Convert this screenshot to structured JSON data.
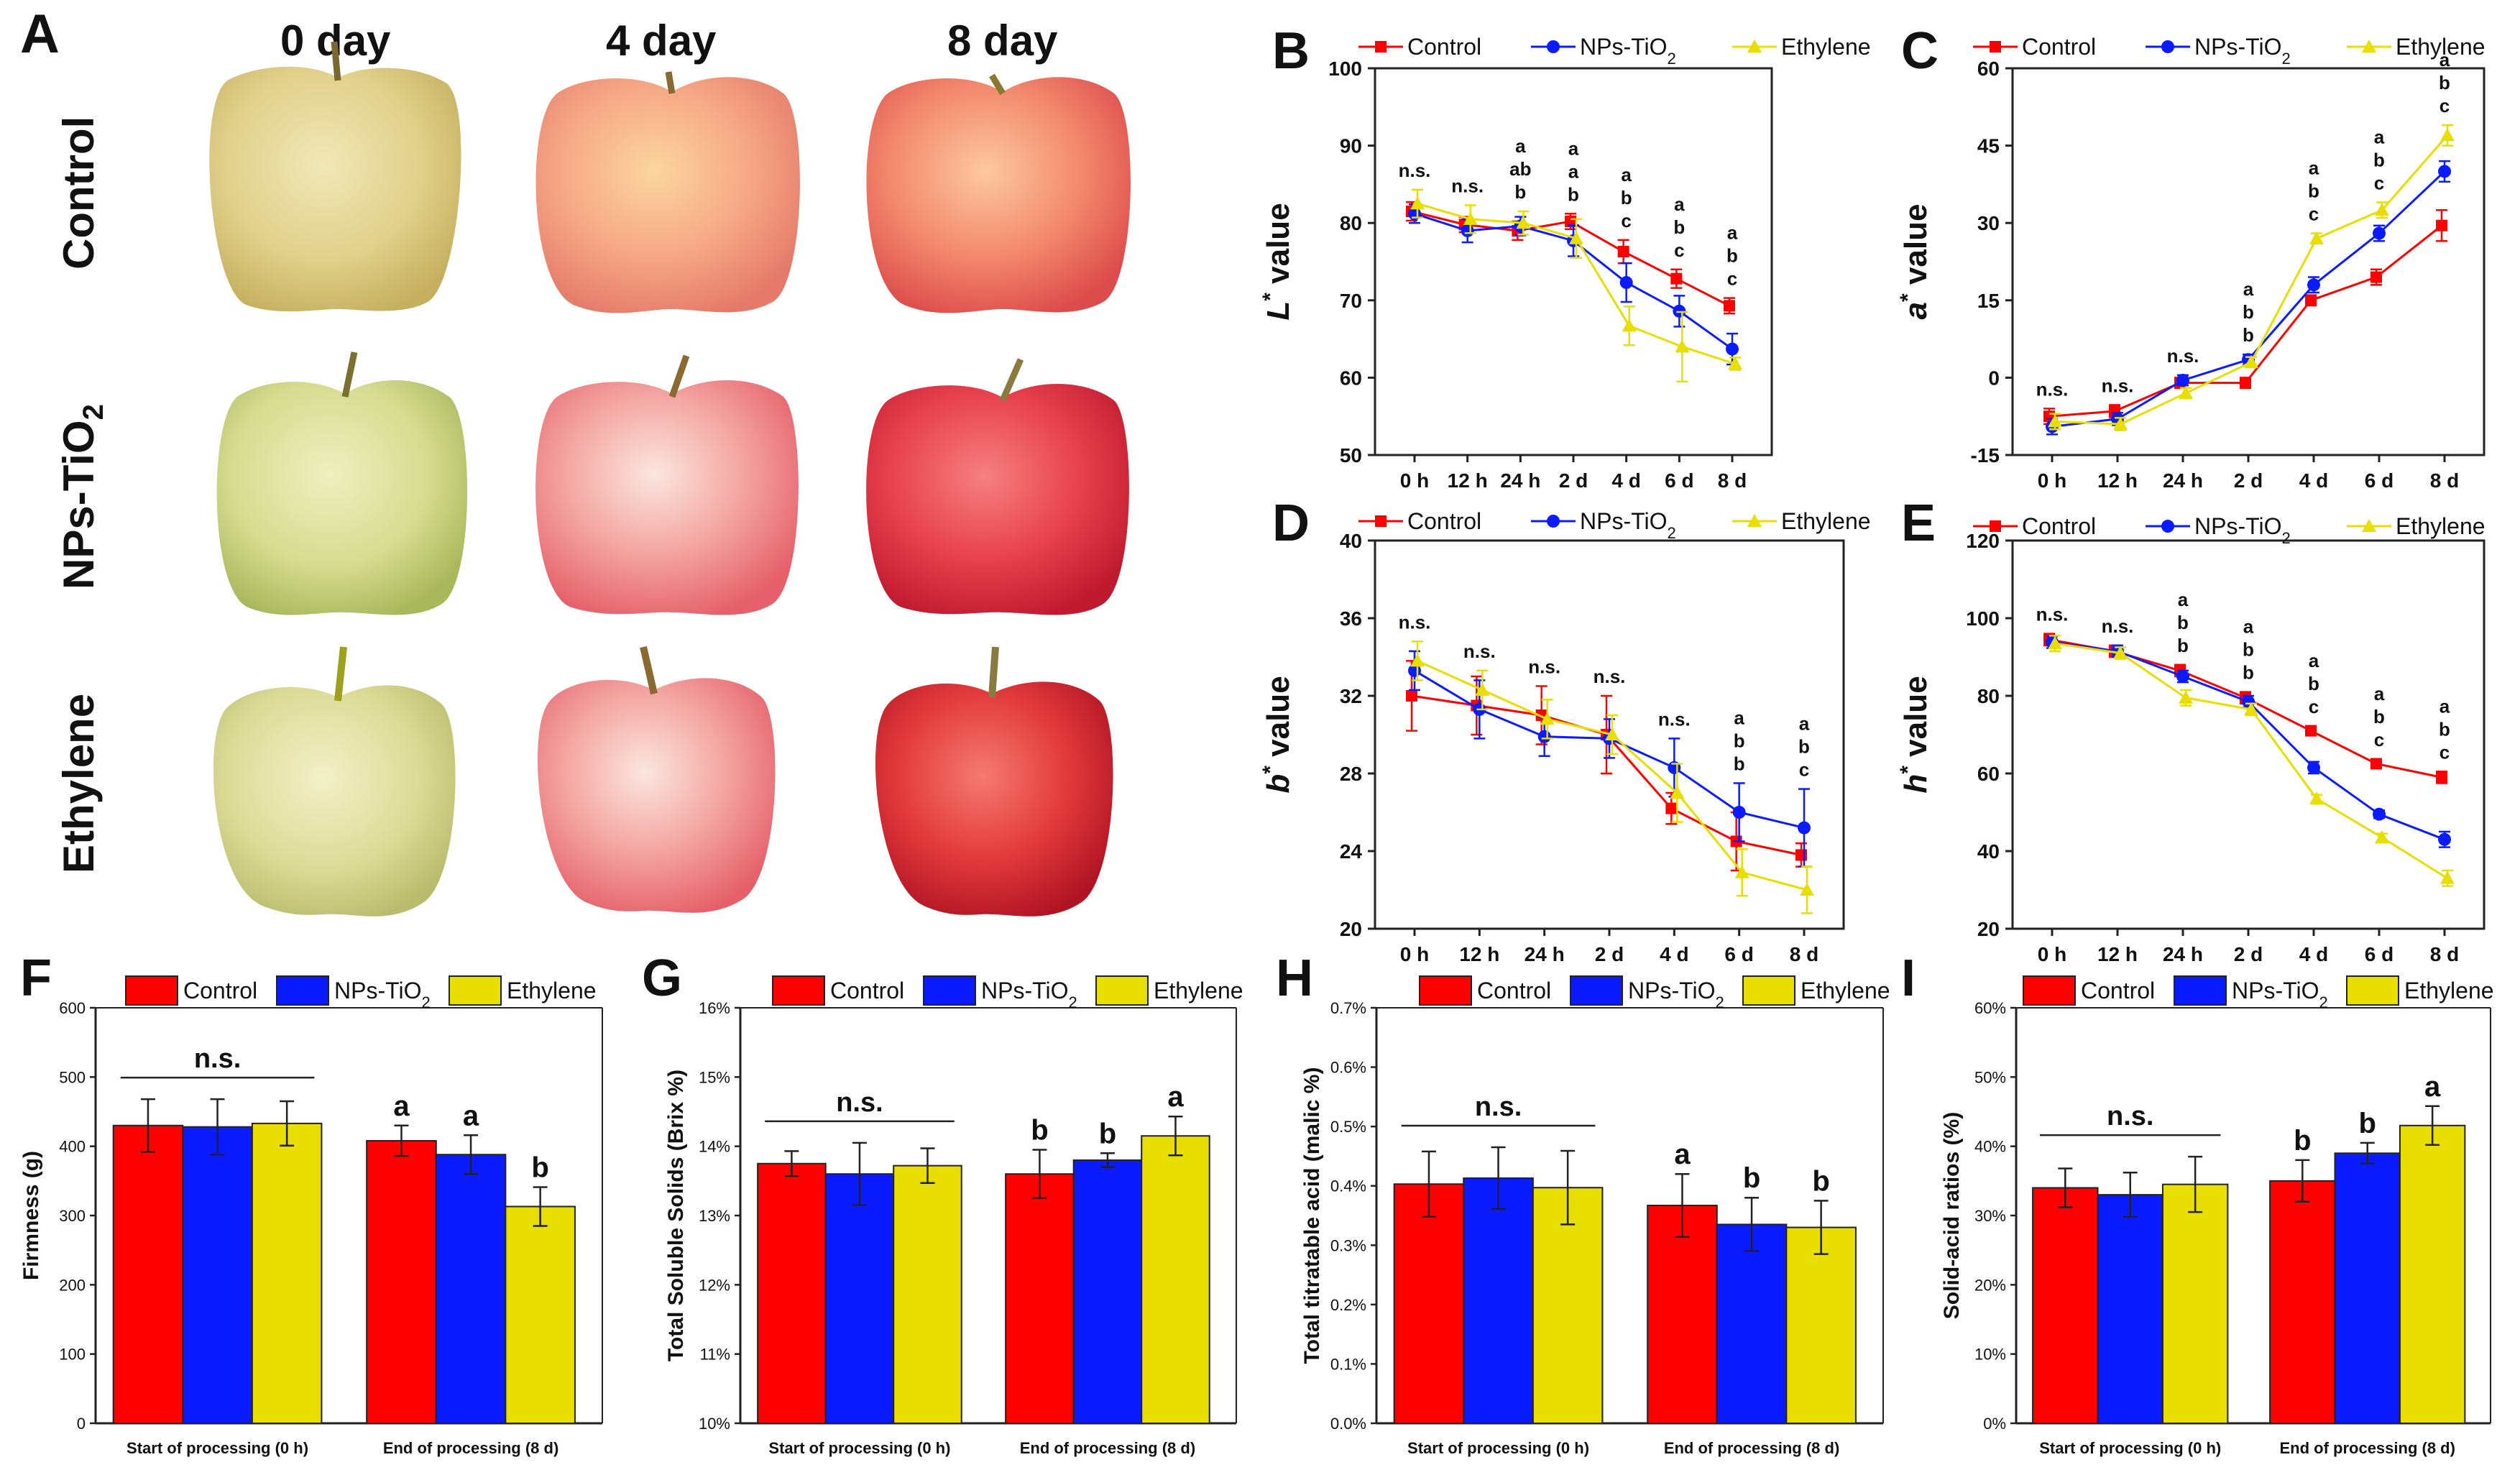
{
  "figure": {
    "panel_letters": [
      "A",
      "B",
      "C",
      "D",
      "E",
      "F",
      "G",
      "H",
      "I"
    ],
    "photo_grid": {
      "columns": [
        "0 day",
        "4 day",
        "8 day"
      ],
      "rows": [
        {
          "label": "Control",
          "sub": ""
        },
        {
          "label": "NPs-TiO",
          "sub": "2"
        },
        {
          "label": "Ethylene",
          "sub": ""
        }
      ]
    }
  },
  "colors": {
    "control": "#ff0000",
    "nps": "#0a1cff",
    "ethylene": "#e8de00",
    "axis": "#222222"
  },
  "legend": {
    "control": "Control",
    "nps": "NPs-TiO",
    "nps_sub": "2",
    "ethylene": "Ethylene"
  },
  "chart_data": [
    {
      "id": "B",
      "type": "line",
      "ylabel": "value",
      "ylabel_var": "L",
      "ylabel_sup": "*",
      "ylim": [
        50,
        100
      ],
      "yticks": [
        50,
        60,
        70,
        80,
        90,
        100
      ],
      "categories": [
        "0 h",
        "12 h",
        "24 h",
        "2 d",
        "4 d",
        "6 d",
        "8 d"
      ],
      "series": [
        {
          "name": "Control",
          "values": [
            81.5,
            79.8,
            79.0,
            80.2,
            76.3,
            72.8,
            69.3
          ],
          "errors": [
            1.2,
            1.0,
            1.2,
            1.0,
            1.5,
            1.2,
            1.0
          ]
        },
        {
          "name": "NPs-TiO2",
          "values": [
            81.2,
            79.0,
            79.6,
            77.7,
            72.3,
            68.6,
            63.7
          ],
          "errors": [
            1.2,
            1.5,
            1.2,
            2.0,
            2.5,
            2.0,
            2.0
          ]
        },
        {
          "name": "Ethylene",
          "values": [
            82.5,
            80.5,
            80.0,
            78.0,
            66.7,
            64.0,
            61.8
          ],
          "errors": [
            1.8,
            1.8,
            1.5,
            2.5,
            2.5,
            4.5,
            0.8
          ]
        }
      ],
      "letters": [
        [
          "n.s."
        ],
        [
          "n.s."
        ],
        [
          "a",
          "ab",
          "b"
        ],
        [
          "a",
          "a",
          "b"
        ],
        [
          "a",
          "b",
          "c"
        ],
        [
          "a",
          "b",
          "c"
        ],
        [
          "a",
          "b",
          "c"
        ]
      ]
    },
    {
      "id": "C",
      "type": "line",
      "ylabel": "value",
      "ylabel_var": "a",
      "ylabel_sup": "*",
      "ylim": [
        -15,
        60
      ],
      "yticks": [
        -15,
        0,
        15,
        30,
        45,
        60
      ],
      "categories": [
        "0 h",
        "12 h",
        "24 h",
        "2 d",
        "4 d",
        "6 d",
        "8 d"
      ],
      "series": [
        {
          "name": "Control",
          "values": [
            -7.5,
            -6.5,
            -1.0,
            -1.0,
            15.0,
            19.5,
            29.5
          ],
          "errors": [
            1.5,
            1.2,
            1.0,
            1.0,
            1.0,
            1.5,
            3.0
          ]
        },
        {
          "name": "NPs-TiO2",
          "values": [
            -9.5,
            -8.0,
            -0.5,
            3.5,
            18.0,
            28.0,
            40.0
          ],
          "errors": [
            1.5,
            1.2,
            1.0,
            1.0,
            1.5,
            1.5,
            2.0
          ]
        },
        {
          "name": "Ethylene",
          "values": [
            -8.5,
            -9.0,
            -3.0,
            3.0,
            27.0,
            32.5,
            47.0
          ],
          "errors": [
            1.5,
            1.2,
            1.0,
            1.0,
            1.0,
            1.5,
            2.0
          ]
        }
      ],
      "letters": [
        [
          "n.s."
        ],
        [
          "n.s."
        ],
        [
          "n.s."
        ],
        [
          "a",
          "b",
          "b"
        ],
        [
          "a",
          "b",
          "c"
        ],
        [
          "a",
          "b",
          "c"
        ],
        [
          "a",
          "b",
          "c"
        ]
      ]
    },
    {
      "id": "D",
      "type": "line",
      "ylabel": "value",
      "ylabel_var": "b",
      "ylabel_sup": "*",
      "ylim": [
        20,
        40
      ],
      "yticks": [
        20,
        24,
        28,
        32,
        36,
        40
      ],
      "categories": [
        "0 h",
        "12 h",
        "24 h",
        "2 d",
        "4 d",
        "6 d",
        "8 d"
      ],
      "series": [
        {
          "name": "Control",
          "values": [
            32.0,
            31.5,
            31.0,
            30.0,
            26.2,
            24.5,
            23.8
          ],
          "errors": [
            1.8,
            1.5,
            1.5,
            2.0,
            0.8,
            1.5,
            0.6
          ]
        },
        {
          "name": "NPs-TiO2",
          "values": [
            33.3,
            31.3,
            29.9,
            29.8,
            28.3,
            26.0,
            25.2
          ],
          "errors": [
            1.0,
            1.5,
            1.0,
            1.0,
            1.5,
            1.5,
            2.0
          ]
        },
        {
          "name": "Ethylene",
          "values": [
            33.8,
            32.3,
            30.8,
            30.0,
            27.0,
            22.9,
            22.0
          ],
          "errors": [
            1.0,
            1.0,
            1.0,
            1.0,
            1.5,
            1.2,
            1.2
          ]
        }
      ],
      "letters": [
        [
          "n.s."
        ],
        [
          "n.s."
        ],
        [
          "n.s."
        ],
        [
          "n.s."
        ],
        [
          "n.s."
        ],
        [
          "a",
          "b",
          "b"
        ],
        [
          "a",
          "b",
          "c"
        ]
      ]
    },
    {
      "id": "E",
      "type": "line",
      "ylabel": "value",
      "ylabel_var": "h",
      "ylabel_sup": "*",
      "ylim": [
        20,
        120
      ],
      "yticks": [
        20,
        40,
        60,
        80,
        100,
        120
      ],
      "categories": [
        "0 h",
        "12 h",
        "24 h",
        "2 d",
        "4 d",
        "6 d",
        "8 d"
      ],
      "series": [
        {
          "name": "Control",
          "values": [
            94.5,
            91.5,
            86.5,
            79.5,
            71.0,
            62.5,
            59.0
          ],
          "errors": [
            1.5,
            1.5,
            1.5,
            1.5,
            1.2,
            1.2,
            1.5
          ]
        },
        {
          "name": "NPs-TiO2",
          "values": [
            93.8,
            91.5,
            85.0,
            78.5,
            61.5,
            49.5,
            43.0
          ],
          "errors": [
            1.5,
            1.5,
            1.5,
            1.5,
            1.5,
            1.0,
            2.0
          ]
        },
        {
          "name": "Ethylene",
          "values": [
            93.5,
            91.0,
            79.5,
            76.5,
            53.5,
            43.5,
            33.0
          ],
          "errors": [
            2.0,
            1.5,
            2.0,
            1.5,
            1.0,
            1.0,
            2.0
          ]
        }
      ],
      "letters": [
        [
          "n.s."
        ],
        [
          "n.s."
        ],
        [
          "a",
          "b",
          "b"
        ],
        [
          "a",
          "b",
          "b"
        ],
        [
          "a",
          "b",
          "c"
        ],
        [
          "a",
          "b",
          "c"
        ],
        [
          "a",
          "b",
          "c"
        ]
      ]
    },
    {
      "id": "F",
      "type": "bar",
      "ylabel": "Firmness (g)",
      "ylim": [
        0,
        600
      ],
      "yticks": [
        0,
        100,
        200,
        300,
        400,
        500,
        600
      ],
      "ytick_labels": [
        "0",
        "100",
        "200",
        "300",
        "400",
        "500",
        "600"
      ],
      "categories": [
        "Start of processing (0 h)",
        "End of processing (8 d)"
      ],
      "series": [
        {
          "name": "Control",
          "values": [
            430,
            408
          ],
          "errors": [
            38,
            22
          ]
        },
        {
          "name": "NPs-TiO2",
          "values": [
            428,
            388
          ],
          "errors": [
            40,
            28
          ]
        },
        {
          "name": "Ethylene",
          "values": [
            433,
            313
          ],
          "errors": [
            32,
            28
          ]
        }
      ],
      "group_letters": [
        "n.s.",
        null
      ],
      "bar_letters": [
        [
          null,
          null,
          null
        ],
        [
          "a",
          "a",
          "b"
        ]
      ]
    },
    {
      "id": "G",
      "type": "bar",
      "ylabel": "Total Soluble Solids (Brix %)",
      "ylim": [
        10,
        16
      ],
      "yticks": [
        10,
        11,
        12,
        13,
        14,
        15,
        16
      ],
      "ytick_labels": [
        "10%",
        "11%",
        "12%",
        "13%",
        "14%",
        "15%",
        "16%"
      ],
      "categories": [
        "Start of processing (0 h)",
        "End of processing (8 d)"
      ],
      "series": [
        {
          "name": "Control",
          "values": [
            13.75,
            13.6
          ],
          "errors": [
            0.18,
            0.35
          ]
        },
        {
          "name": "NPs-TiO2",
          "values": [
            13.6,
            13.8
          ],
          "errors": [
            0.45,
            0.1
          ]
        },
        {
          "name": "Ethylene",
          "values": [
            13.72,
            14.15
          ],
          "errors": [
            0.25,
            0.28
          ]
        }
      ],
      "group_letters": [
        "n.s.",
        null
      ],
      "bar_letters": [
        [
          null,
          null,
          null
        ],
        [
          "b",
          "b",
          "a"
        ]
      ]
    },
    {
      "id": "H",
      "type": "bar",
      "ylabel": "Total titratable acid (malic %)",
      "ylim": [
        0,
        0.7
      ],
      "yticks": [
        0,
        0.1,
        0.2,
        0.3,
        0.4,
        0.5,
        0.6,
        0.7
      ],
      "ytick_labels": [
        "0.0%",
        "0.1%",
        "0.2%",
        "0.3%",
        "0.4%",
        "0.5%",
        "0.6%",
        "0.7%"
      ],
      "categories": [
        "Start of processing (0 h)",
        "End of processing (8 d)"
      ],
      "series": [
        {
          "name": "Control",
          "values": [
            0.403,
            0.367
          ],
          "errors": [
            0.055,
            0.053
          ]
        },
        {
          "name": "NPs-TiO2",
          "values": [
            0.413,
            0.335
          ],
          "errors": [
            0.052,
            0.045
          ]
        },
        {
          "name": "Ethylene",
          "values": [
            0.397,
            0.33
          ],
          "errors": [
            0.062,
            0.045
          ]
        }
      ],
      "group_letters": [
        "n.s.",
        null
      ],
      "bar_letters": [
        [
          null,
          null,
          null
        ],
        [
          "a",
          "b",
          "b"
        ]
      ]
    },
    {
      "id": "I",
      "type": "bar",
      "ylabel": "Solid-acid ratios (%)",
      "ylim": [
        0,
        60
      ],
      "yticks": [
        0,
        10,
        20,
        30,
        40,
        50,
        60
      ],
      "ytick_labels": [
        "0%",
        "10%",
        "20%",
        "30%",
        "40%",
        "50%",
        "60%"
      ],
      "categories": [
        "Start of processing (0 h)",
        "End of processing (8 d)"
      ],
      "series": [
        {
          "name": "Control",
          "values": [
            34,
            35
          ],
          "errors": [
            2.8,
            3.0
          ]
        },
        {
          "name": "NPs-TiO2",
          "values": [
            33,
            39
          ],
          "errors": [
            3.2,
            1.5
          ]
        },
        {
          "name": "Ethylene",
          "values": [
            34.5,
            43
          ],
          "errors": [
            4.0,
            2.8
          ]
        }
      ],
      "group_letters": [
        "n.s.",
        null
      ],
      "bar_letters": [
        [
          null,
          null,
          null
        ],
        [
          "b",
          "b",
          "a"
        ]
      ]
    }
  ]
}
